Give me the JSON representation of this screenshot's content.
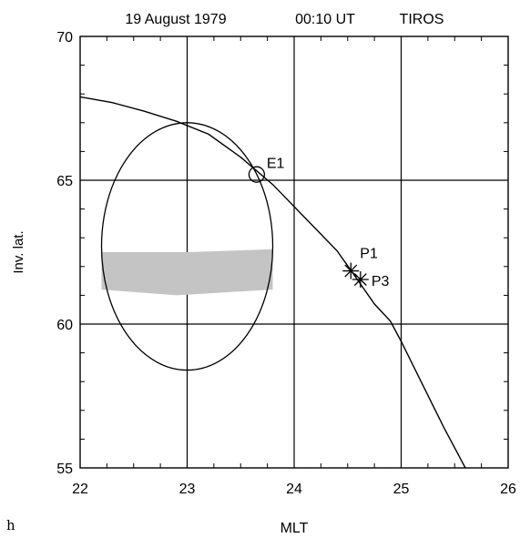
{
  "chart_data": {
    "type": "scatter",
    "title": {
      "date": "19 August 1979",
      "time": "00:10 UT",
      "satellite": "TIROS"
    },
    "panel_label": "h",
    "xlabel": "MLT",
    "ylabel": "Inv. lat.",
    "xlim": [
      22,
      26
    ],
    "ylim": [
      55,
      70
    ],
    "xticks": [
      22,
      23,
      24,
      25,
      26
    ],
    "yticks": [
      55,
      60,
      65,
      70
    ],
    "grid": true,
    "colors": {
      "line": "#000000",
      "band": "#c4c4c4",
      "background": "#ffffff"
    },
    "series": [
      {
        "kind": "track",
        "points": [
          [
            22.0,
            67.9
          ],
          [
            22.3,
            67.7
          ],
          [
            22.6,
            67.4
          ],
          [
            22.9,
            67.05
          ],
          [
            23.2,
            66.6
          ],
          [
            23.5,
            65.8
          ],
          [
            23.8,
            64.85
          ],
          [
            24.1,
            63.7
          ],
          [
            24.4,
            62.55
          ],
          [
            24.6,
            61.5
          ],
          [
            24.75,
            60.7
          ],
          [
            24.9,
            60.1
          ],
          [
            25.0,
            59.4
          ],
          [
            25.2,
            57.9
          ],
          [
            25.4,
            56.4
          ],
          [
            25.6,
            55.0
          ]
        ]
      },
      {
        "kind": "ellipse",
        "center": [
          23.0,
          62.7
        ],
        "rx": 0.8,
        "ry": 4.3
      },
      {
        "kind": "band",
        "upper": [
          [
            22.2,
            62.5
          ],
          [
            23.0,
            62.5
          ],
          [
            23.8,
            62.6
          ]
        ],
        "lower": [
          [
            22.2,
            61.2
          ],
          [
            22.9,
            61.0
          ],
          [
            23.8,
            61.2
          ]
        ]
      }
    ],
    "markers": [
      {
        "label": "E1",
        "symbol": "circle",
        "x": 23.65,
        "y": 65.2
      },
      {
        "label": "P1",
        "symbol": "asterisk",
        "x": 24.53,
        "y": 61.85
      },
      {
        "label": "P3",
        "symbol": "asterisk",
        "x": 24.62,
        "y": 61.55
      }
    ]
  }
}
